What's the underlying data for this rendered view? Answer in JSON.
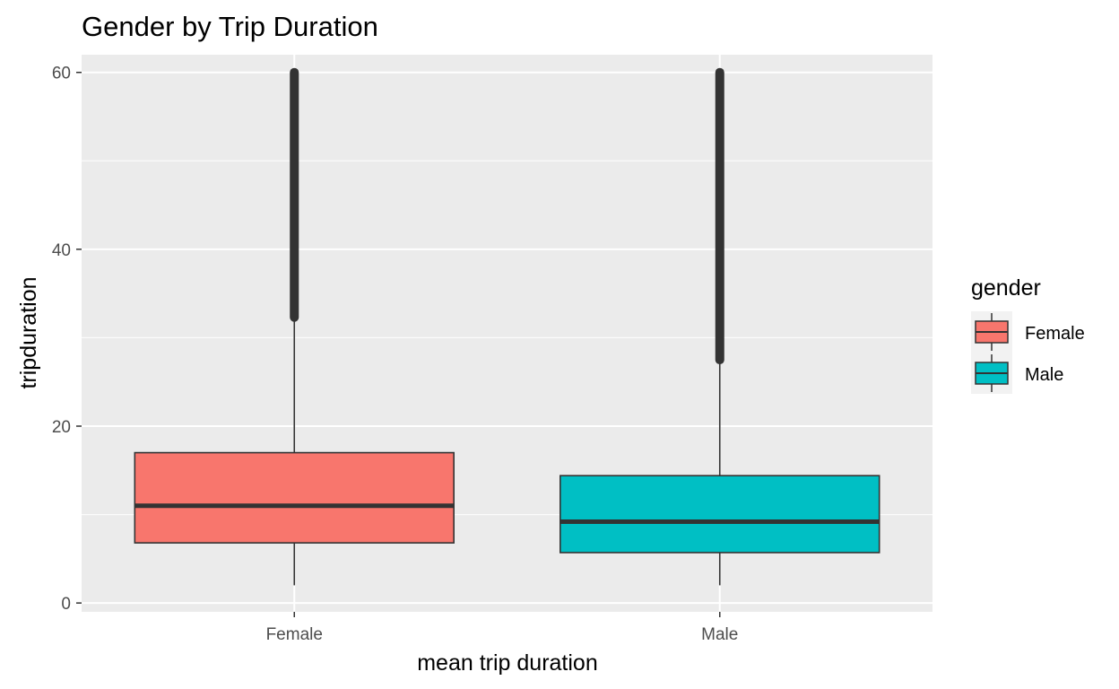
{
  "chart_data": {
    "type": "boxplot",
    "title": "Gender by Trip Duration",
    "xlabel": "mean trip duration",
    "ylabel": "tripduration",
    "categories": [
      "Female",
      "Male"
    ],
    "ylim": [
      -1,
      62
    ],
    "yticks": [
      0,
      20,
      40,
      60
    ],
    "grid": true,
    "legend": {
      "title": "gender",
      "position": "right",
      "entries": [
        "Female",
        "Male"
      ]
    },
    "colors": {
      "Female": "#F8766D",
      "Male": "#00BFC4",
      "panel": "#EBEBEB",
      "grid": "#FFFFFF",
      "outline": "#333333"
    },
    "boxes": [
      {
        "name": "Female",
        "whisker_low": 2,
        "q1": 6.8,
        "median": 11,
        "q3": 17,
        "whisker_high": 32.3,
        "outliers_range": [
          32.3,
          60
        ]
      },
      {
        "name": "Male",
        "whisker_low": 2,
        "q1": 5.7,
        "median": 9.2,
        "q3": 14.4,
        "whisker_high": 27.5,
        "outliers_range": [
          27.5,
          60
        ]
      }
    ]
  }
}
